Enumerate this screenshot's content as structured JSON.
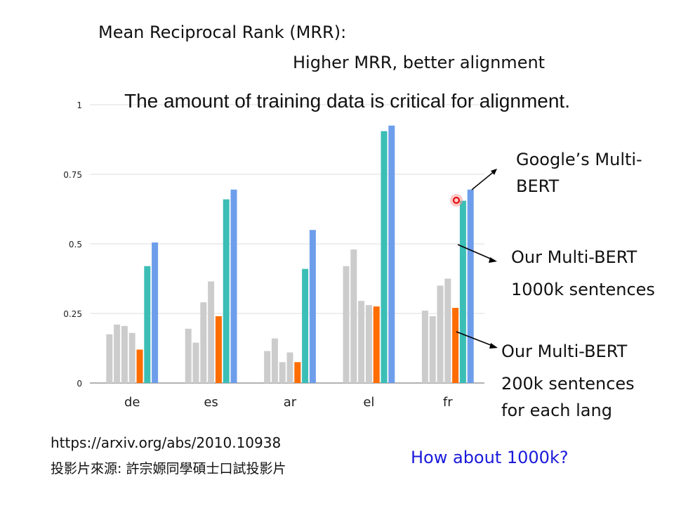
{
  "slide": {
    "title": "Mean Reciprocal Rank (MRR):",
    "subtitle": "Higher MRR, better alignment",
    "headline": "The amount of training data is critical for alignment.",
    "annotations": {
      "google": [
        "Google’s Multi-",
        "BERT"
      ],
      "our_1000k": [
        "Our Multi-BERT",
        "1000k sentences"
      ],
      "our_200k": [
        "Our Multi-BERT",
        "200k sentences",
        "for each lang"
      ]
    },
    "reference_url": "https://arxiv.org/abs/2010.10938",
    "source": "投影片來源: 許宗嫄同學碩士口試投影片",
    "question": "How about 1000k?"
  },
  "colors": {
    "gray": "#cccccc",
    "orange": "#ff6d01",
    "teal": "#3bbeb5",
    "blue": "#6d9eeb",
    "axis": "#999999",
    "grid": "#dddddd",
    "question": "#1a1adb"
  },
  "chart_data": {
    "type": "bar",
    "categories": [
      "de",
      "es",
      "ar",
      "el",
      "fr"
    ],
    "yticks": [
      "0",
      "0.25",
      "0.5",
      "0.75",
      "1"
    ],
    "ylim": [
      0,
      1
    ],
    "grid": true,
    "series": [
      {
        "values": [
          0.175,
          0.195,
          0.115,
          0.42,
          0.26
        ],
        "color": "gray"
      },
      {
        "values": [
          0.21,
          0.145,
          0.16,
          0.48,
          0.24
        ],
        "color": "gray"
      },
      {
        "values": [
          0.205,
          0.29,
          0.075,
          0.295,
          0.35
        ],
        "color": "gray"
      },
      {
        "values": [
          0.18,
          0.365,
          0.11,
          0.28,
          0.375
        ],
        "color": "gray"
      },
      {
        "values": [
          0.12,
          0.24,
          0.075,
          0.275,
          0.27
        ],
        "color": "orange"
      },
      {
        "values": [
          0.42,
          0.66,
          0.41,
          0.905,
          0.655
        ],
        "color": "teal"
      },
      {
        "values": [
          0.505,
          0.695,
          0.55,
          0.925,
          0.695
        ],
        "color": "blue"
      }
    ]
  }
}
